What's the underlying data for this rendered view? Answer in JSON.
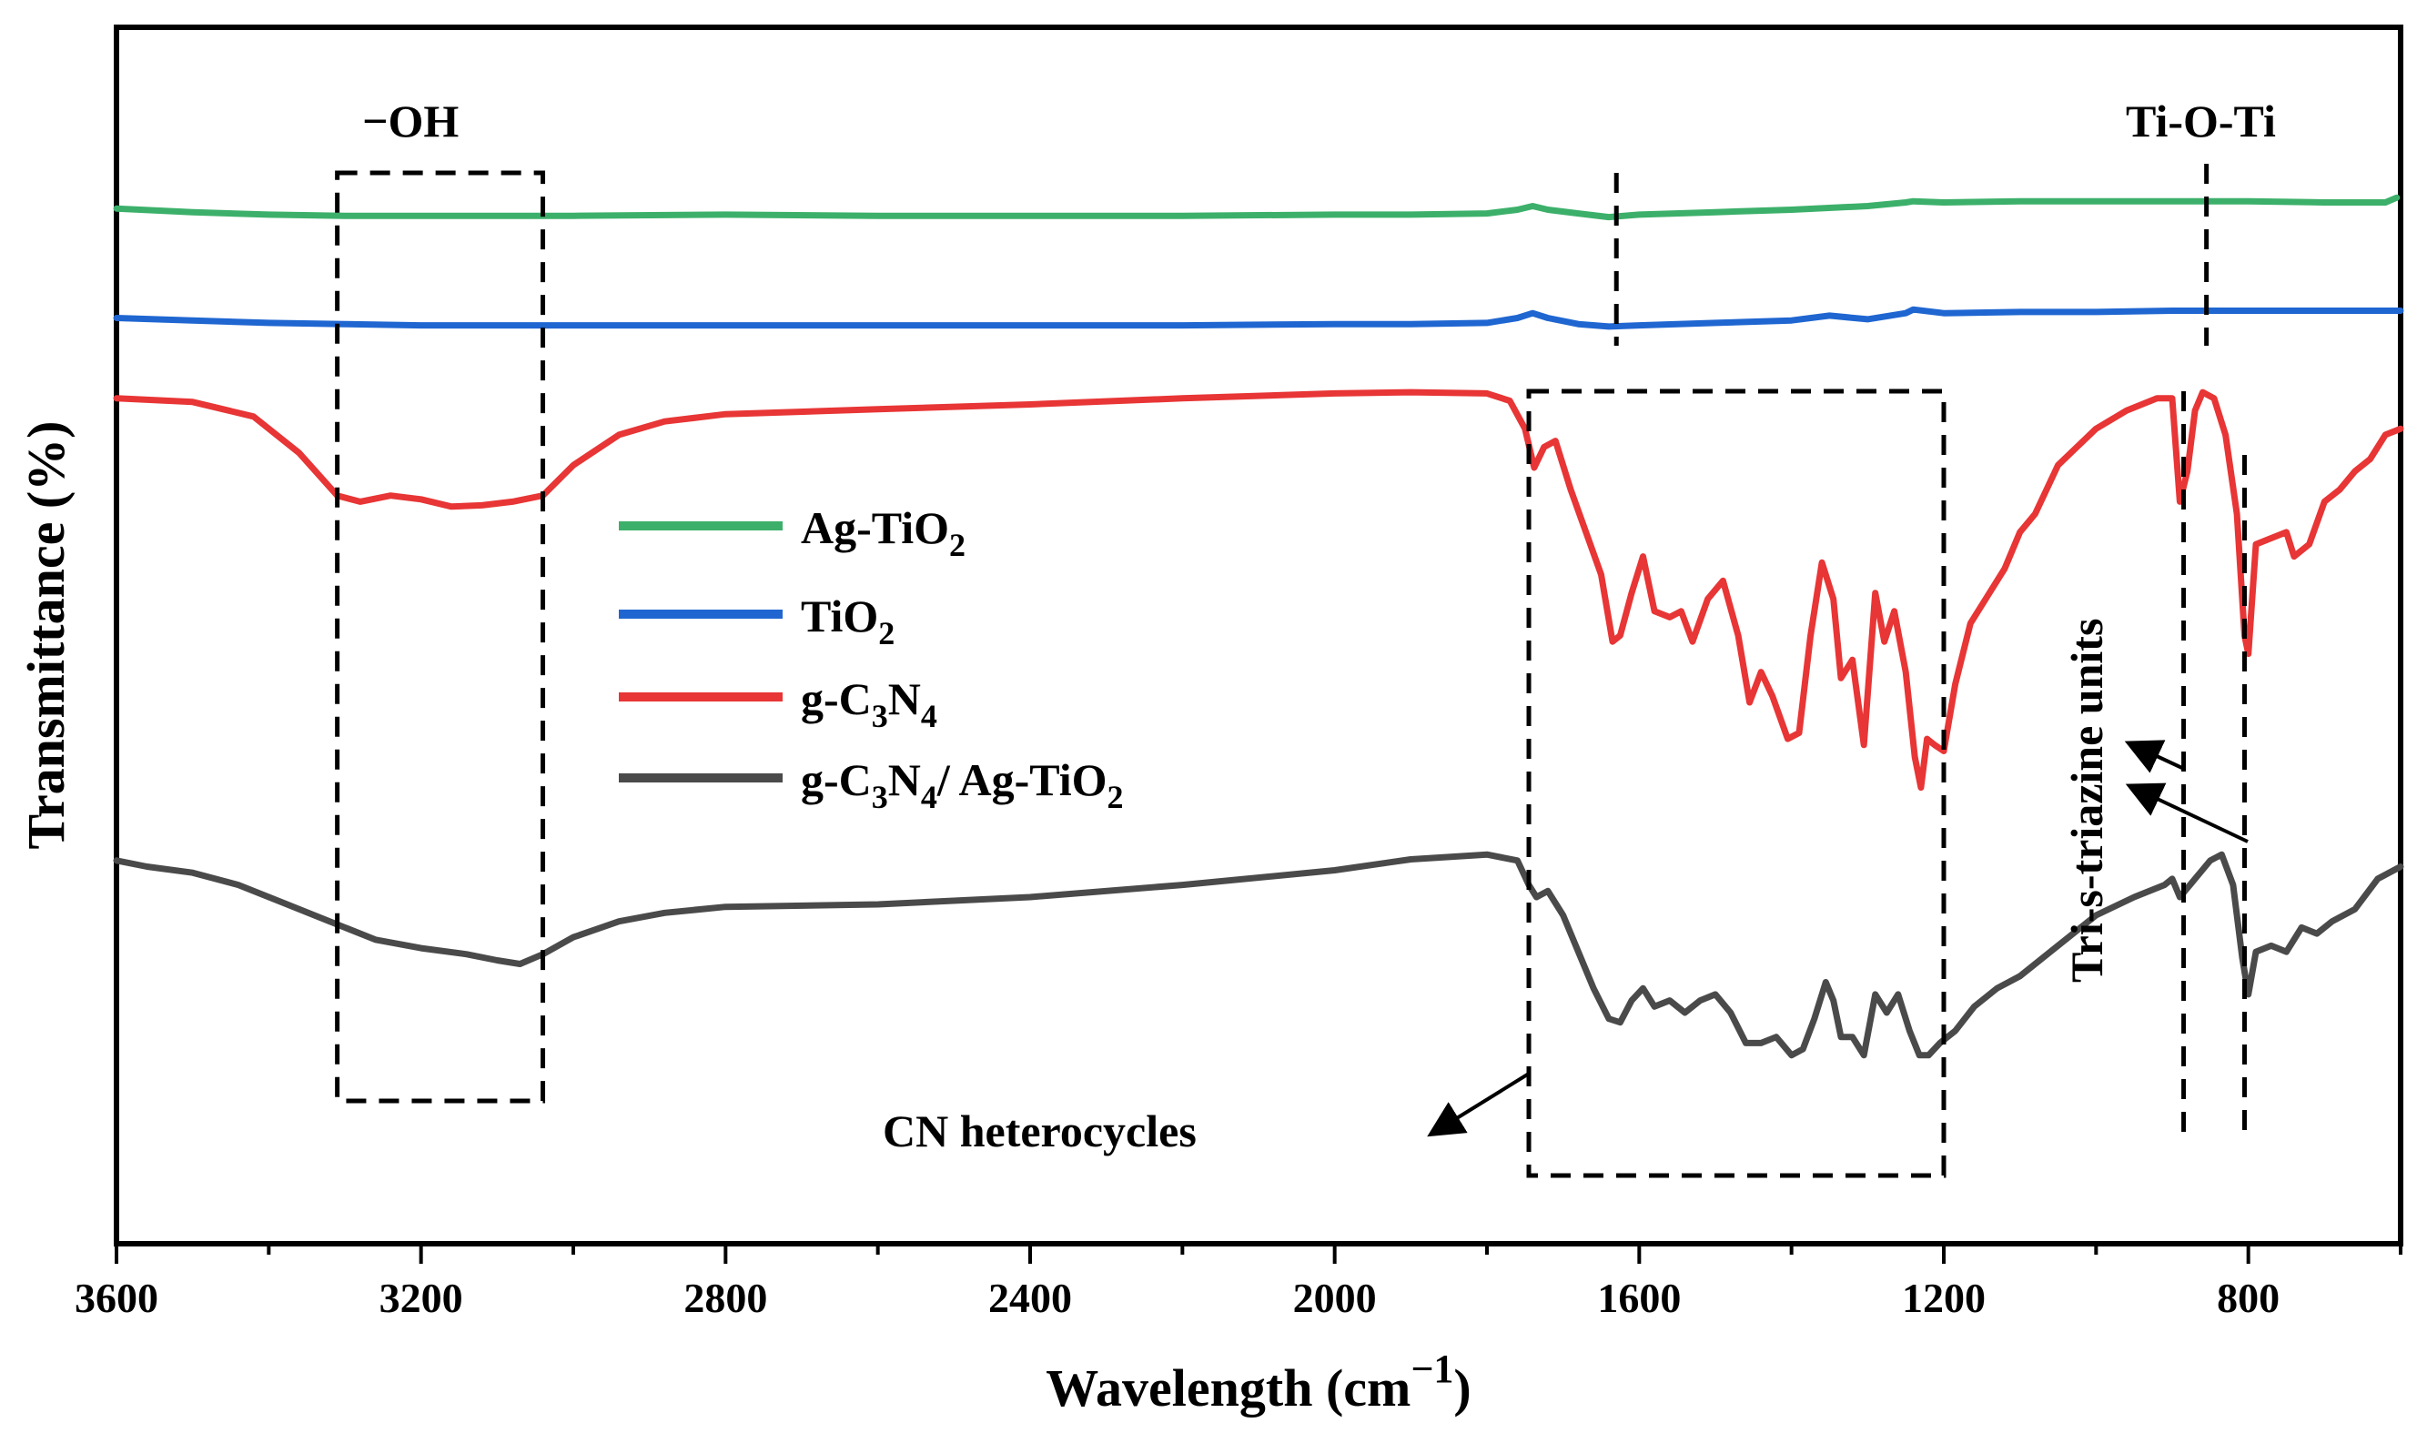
{
  "chart_data": {
    "type": "line",
    "xlabel": "Wavelength (cm",
    "xlabel_sup": "−1",
    "xlabel_end": ")",
    "ylabel": "Transmittance (%)",
    "x_reversed": true,
    "xlim": [
      3600,
      600
    ],
    "ylim": [
      0,
      100
    ],
    "y_tick_labels": false,
    "x_ticks": [
      3600,
      3200,
      2800,
      2400,
      2000,
      1600,
      1200,
      800
    ],
    "x_tick_labels": [
      "3600",
      "3200",
      "2800",
      "2400",
      "2000",
      "1600",
      "1200",
      "800"
    ],
    "legend_position": "center-left",
    "series": [
      {
        "name": "Ag-TiO₂",
        "legend_main": "Ag-TiO",
        "legend_sub": "2",
        "color": "#3cb06a",
        "points": [
          [
            3600,
            85.1
          ],
          [
            3500,
            84.8
          ],
          [
            3400,
            84.6
          ],
          [
            3300,
            84.5
          ],
          [
            3200,
            84.5
          ],
          [
            3000,
            84.5
          ],
          [
            2800,
            84.6
          ],
          [
            2600,
            84.5
          ],
          [
            2400,
            84.5
          ],
          [
            2200,
            84.5
          ],
          [
            2000,
            84.6
          ],
          [
            1900,
            84.6
          ],
          [
            1800,
            84.7
          ],
          [
            1760,
            85.0
          ],
          [
            1740,
            85.3
          ],
          [
            1720,
            85.0
          ],
          [
            1680,
            84.7
          ],
          [
            1640,
            84.4
          ],
          [
            1600,
            84.6
          ],
          [
            1500,
            84.8
          ],
          [
            1400,
            85.0
          ],
          [
            1300,
            85.3
          ],
          [
            1250,
            85.6
          ],
          [
            1240,
            85.7
          ],
          [
            1200,
            85.6
          ],
          [
            1100,
            85.7
          ],
          [
            1000,
            85.7
          ],
          [
            900,
            85.7
          ],
          [
            800,
            85.7
          ],
          [
            700,
            85.6
          ],
          [
            620,
            85.6
          ],
          [
            605,
            86.0
          ]
        ]
      },
      {
        "name": "TiO₂",
        "legend_main": "TiO",
        "legend_sub": "2",
        "color": "#1f66d1",
        "points": [
          [
            3600,
            76.1
          ],
          [
            3500,
            75.9
          ],
          [
            3400,
            75.7
          ],
          [
            3300,
            75.6
          ],
          [
            3200,
            75.5
          ],
          [
            3000,
            75.5
          ],
          [
            2800,
            75.5
          ],
          [
            2600,
            75.5
          ],
          [
            2400,
            75.5
          ],
          [
            2200,
            75.5
          ],
          [
            2000,
            75.6
          ],
          [
            1900,
            75.6
          ],
          [
            1800,
            75.7
          ],
          [
            1760,
            76.1
          ],
          [
            1740,
            76.5
          ],
          [
            1720,
            76.1
          ],
          [
            1680,
            75.6
          ],
          [
            1640,
            75.4
          ],
          [
            1600,
            75.5
          ],
          [
            1500,
            75.7
          ],
          [
            1400,
            75.9
          ],
          [
            1350,
            76.3
          ],
          [
            1300,
            76.0
          ],
          [
            1250,
            76.5
          ],
          [
            1240,
            76.8
          ],
          [
            1200,
            76.5
          ],
          [
            1100,
            76.6
          ],
          [
            1000,
            76.6
          ],
          [
            900,
            76.7
          ],
          [
            800,
            76.7
          ],
          [
            700,
            76.7
          ],
          [
            600,
            76.7
          ]
        ]
      },
      {
        "name": "g-C₃N₄",
        "legend_main": "g-C",
        "legend_sub1": "3",
        "legend_mid": "N",
        "legend_sub2": "4",
        "color": "#e83535",
        "points": [
          [
            3600,
            69.5
          ],
          [
            3500,
            69.2
          ],
          [
            3420,
            68.0
          ],
          [
            3360,
            65.0
          ],
          [
            3310,
            61.5
          ],
          [
            3280,
            61.0
          ],
          [
            3240,
            61.5
          ],
          [
            3200,
            61.2
          ],
          [
            3160,
            60.6
          ],
          [
            3120,
            60.7
          ],
          [
            3080,
            61.0
          ],
          [
            3040,
            61.5
          ],
          [
            3000,
            64.0
          ],
          [
            2940,
            66.5
          ],
          [
            2880,
            67.6
          ],
          [
            2800,
            68.2
          ],
          [
            2600,
            68.6
          ],
          [
            2400,
            69.0
          ],
          [
            2200,
            69.5
          ],
          [
            2000,
            69.9
          ],
          [
            1900,
            70.0
          ],
          [
            1800,
            69.9
          ],
          [
            1770,
            69.3
          ],
          [
            1750,
            67.0
          ],
          [
            1738,
            63.8
          ],
          [
            1725,
            65.5
          ],
          [
            1710,
            66.0
          ],
          [
            1690,
            62.0
          ],
          [
            1670,
            58.5
          ],
          [
            1650,
            55.0
          ],
          [
            1635,
            49.5
          ],
          [
            1625,
            50.0
          ],
          [
            1610,
            53.5
          ],
          [
            1595,
            56.5
          ],
          [
            1580,
            52.0
          ],
          [
            1560,
            51.5
          ],
          [
            1545,
            52.0
          ],
          [
            1530,
            49.5
          ],
          [
            1510,
            53.0
          ],
          [
            1490,
            54.5
          ],
          [
            1470,
            50.0
          ],
          [
            1455,
            44.5
          ],
          [
            1440,
            47.0
          ],
          [
            1425,
            45.0
          ],
          [
            1405,
            41.5
          ],
          [
            1390,
            42.0
          ],
          [
            1375,
            50.0
          ],
          [
            1360,
            56.0
          ],
          [
            1345,
            53.0
          ],
          [
            1335,
            46.5
          ],
          [
            1320,
            48.0
          ],
          [
            1305,
            41.0
          ],
          [
            1290,
            53.5
          ],
          [
            1278,
            49.5
          ],
          [
            1265,
            52.0
          ],
          [
            1250,
            47.0
          ],
          [
            1238,
            40.0
          ],
          [
            1230,
            37.5
          ],
          [
            1222,
            41.5
          ],
          [
            1212,
            41.0
          ],
          [
            1200,
            40.5
          ],
          [
            1185,
            46.0
          ],
          [
            1165,
            51.0
          ],
          [
            1140,
            53.5
          ],
          [
            1120,
            55.5
          ],
          [
            1100,
            58.5
          ],
          [
            1080,
            60.0
          ],
          [
            1050,
            64.0
          ],
          [
            1000,
            67.0
          ],
          [
            960,
            68.5
          ],
          [
            920,
            69.5
          ],
          [
            900,
            69.5
          ],
          [
            890,
            61.0
          ],
          [
            880,
            63.5
          ],
          [
            870,
            68.5
          ],
          [
            860,
            70.0
          ],
          [
            845,
            69.5
          ],
          [
            830,
            66.5
          ],
          [
            815,
            60.0
          ],
          [
            805,
            50.0
          ],
          [
            800,
            48.5
          ],
          [
            790,
            57.5
          ],
          [
            770,
            58.0
          ],
          [
            750,
            58.5
          ],
          [
            740,
            56.5
          ],
          [
            720,
            57.5
          ],
          [
            700,
            61.0
          ],
          [
            680,
            62.0
          ],
          [
            660,
            63.5
          ],
          [
            640,
            64.5
          ],
          [
            620,
            66.5
          ],
          [
            600,
            67.0
          ]
        ]
      },
      {
        "name": "g-C₃N₄/ Ag-TiO₂",
        "legend_main": "g-C",
        "legend_sub1": "3",
        "legend_mid": "N",
        "legend_sub2": "4",
        "legend_tail": "/ Ag-TiO",
        "legend_sub3": "2",
        "color": "#4a4a4a",
        "points": [
          [
            3600,
            31.5
          ],
          [
            3560,
            31.0
          ],
          [
            3500,
            30.5
          ],
          [
            3440,
            29.5
          ],
          [
            3380,
            28.0
          ],
          [
            3320,
            26.5
          ],
          [
            3260,
            25.0
          ],
          [
            3200,
            24.3
          ],
          [
            3140,
            23.8
          ],
          [
            3100,
            23.3
          ],
          [
            3070,
            23.0
          ],
          [
            3040,
            23.8
          ],
          [
            3000,
            25.2
          ],
          [
            2940,
            26.5
          ],
          [
            2880,
            27.2
          ],
          [
            2800,
            27.7
          ],
          [
            2600,
            27.9
          ],
          [
            2400,
            28.5
          ],
          [
            2200,
            29.5
          ],
          [
            2000,
            30.7
          ],
          [
            1900,
            31.6
          ],
          [
            1800,
            32.0
          ],
          [
            1760,
            31.5
          ],
          [
            1745,
            29.5
          ],
          [
            1735,
            28.5
          ],
          [
            1720,
            29.0
          ],
          [
            1700,
            27.0
          ],
          [
            1680,
            24.0
          ],
          [
            1660,
            21.0
          ],
          [
            1640,
            18.5
          ],
          [
            1625,
            18.2
          ],
          [
            1610,
            20.0
          ],
          [
            1595,
            21.0
          ],
          [
            1580,
            19.5
          ],
          [
            1560,
            20.0
          ],
          [
            1540,
            19.0
          ],
          [
            1520,
            20.0
          ],
          [
            1500,
            20.5
          ],
          [
            1480,
            19.0
          ],
          [
            1460,
            16.5
          ],
          [
            1440,
            16.5
          ],
          [
            1420,
            17.0
          ],
          [
            1400,
            15.5
          ],
          [
            1385,
            16.0
          ],
          [
            1370,
            18.5
          ],
          [
            1355,
            21.5
          ],
          [
            1345,
            20.0
          ],
          [
            1335,
            17.0
          ],
          [
            1320,
            17.0
          ],
          [
            1305,
            15.5
          ],
          [
            1290,
            20.5
          ],
          [
            1275,
            19.0
          ],
          [
            1260,
            20.5
          ],
          [
            1245,
            17.5
          ],
          [
            1232,
            15.5
          ],
          [
            1220,
            15.5
          ],
          [
            1205,
            16.5
          ],
          [
            1185,
            17.5
          ],
          [
            1160,
            19.5
          ],
          [
            1130,
            21.0
          ],
          [
            1100,
            22.0
          ],
          [
            1050,
            24.5
          ],
          [
            1000,
            27.0
          ],
          [
            950,
            28.5
          ],
          [
            910,
            29.5
          ],
          [
            900,
            30.0
          ],
          [
            890,
            28.5
          ],
          [
            870,
            30.0
          ],
          [
            850,
            31.5
          ],
          [
            835,
            32.0
          ],
          [
            820,
            29.5
          ],
          [
            808,
            23.5
          ],
          [
            800,
            20.5
          ],
          [
            790,
            24.0
          ],
          [
            770,
            24.5
          ],
          [
            750,
            24.0
          ],
          [
            730,
            26.0
          ],
          [
            710,
            25.5
          ],
          [
            690,
            26.5
          ],
          [
            660,
            27.5
          ],
          [
            630,
            30.0
          ],
          [
            600,
            31.0
          ]
        ]
      }
    ],
    "annotations": {
      "oh_label": "−OH",
      "tioti_label": "Ti-O-Ti",
      "cn_label": "CN heterocycles",
      "triazine_label": "Tri-s-triazine units"
    },
    "annotation_data": {
      "oh_box_x": [
        3310,
        3040
      ],
      "tioti_x": 855,
      "peak_1630_x": 1630,
      "cn_box_x": [
        1745,
        1200
      ],
      "triazine_x": [
        885,
        805
      ]
    }
  }
}
